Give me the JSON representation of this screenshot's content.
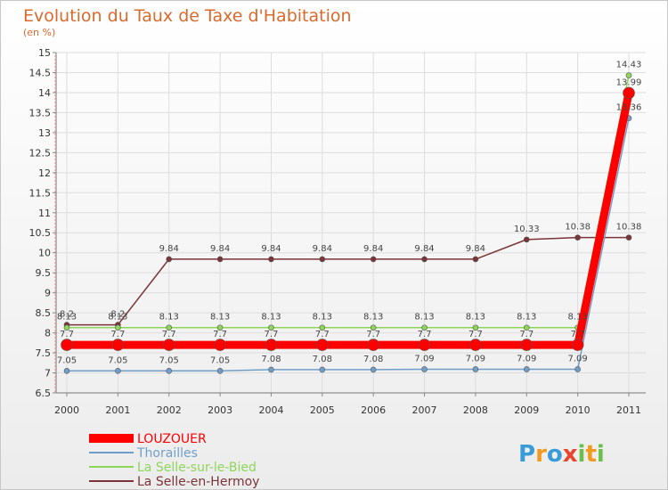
{
  "chart_data": {
    "type": "line",
    "title": "Evolution du Taux de Taxe d'Habitation",
    "subtitle": "(en %)",
    "xlabel": "",
    "ylabel": "",
    "categories": [
      "2000",
      "2001",
      "2002",
      "2003",
      "2004",
      "2005",
      "2006",
      "2007",
      "2008",
      "2009",
      "2010",
      "2011"
    ],
    "ylim": [
      6.5,
      15
    ],
    "yticks": [
      6.5,
      7,
      7.5,
      8,
      8.5,
      9,
      9.5,
      10,
      10.5,
      11,
      11.5,
      12,
      12.5,
      13,
      13.5,
      14,
      14.5,
      15
    ],
    "ytick_labels": [
      "6.5",
      "7",
      "7.5",
      "8",
      "8.5",
      "9",
      "9.5",
      "10",
      "10.5",
      "11",
      "11.5",
      "12",
      "12.5",
      "13",
      "13.5",
      "14",
      "14.5",
      "15"
    ],
    "grid": true,
    "legend_position": "bottom-left",
    "series": [
      {
        "name": "LOUZOUER",
        "color": "#ff0000",
        "values": [
          7.7,
          7.7,
          7.7,
          7.7,
          7.7,
          7.7,
          7.7,
          7.7,
          7.7,
          7.7,
          7.7,
          13.99
        ],
        "labels": [
          "7.7",
          "7.7",
          "7.7",
          "7.7",
          "7.7",
          "7.7",
          "7.7",
          "7.7",
          "7.7",
          "7.7",
          "7.7",
          "13.99"
        ]
      },
      {
        "name": "Thorailles",
        "color": "#6f9fc9",
        "values": [
          7.05,
          7.05,
          7.05,
          7.05,
          7.08,
          7.08,
          7.08,
          7.09,
          7.09,
          7.09,
          7.09,
          13.36
        ],
        "labels": [
          "7.05",
          "7.05",
          "7.05",
          "7.05",
          "7.08",
          "7.08",
          "7.08",
          "7.09",
          "7.09",
          "7.09",
          "7.09",
          "13.36"
        ]
      },
      {
        "name": "La Selle-sur-le-Bied",
        "color": "#8ed65a",
        "values": [
          8.13,
          8.13,
          8.13,
          8.13,
          8.13,
          8.13,
          8.13,
          8.13,
          8.13,
          8.13,
          8.13,
          14.43
        ],
        "labels": [
          "8.13",
          "8.13",
          "8.13",
          "8.13",
          "8.13",
          "8.13",
          "8.13",
          "8.13",
          "8.13",
          "8.13",
          "8.13",
          "14.43"
        ]
      },
      {
        "name": "La Selle-en-Hermoy",
        "color": "#7b3438",
        "values": [
          8.2,
          8.2,
          9.84,
          9.84,
          9.84,
          9.84,
          9.84,
          9.84,
          9.84,
          10.33,
          10.38,
          10.38
        ],
        "labels": [
          "8.2",
          "8.2",
          "9.84",
          "9.84",
          "9.84",
          "9.84",
          "9.84",
          "9.84",
          "9.84",
          "10.33",
          "10.38",
          "10.38"
        ]
      }
    ]
  },
  "branding": {
    "letters": [
      "P",
      "r",
      "o",
      "x",
      "i",
      "t",
      "i"
    ],
    "colors": [
      "#3a9bd9",
      "#f29a1f",
      "#3a9bd9",
      "#e8442e",
      "#6cc04a",
      "#f29a1f",
      "#6cc04a"
    ]
  }
}
